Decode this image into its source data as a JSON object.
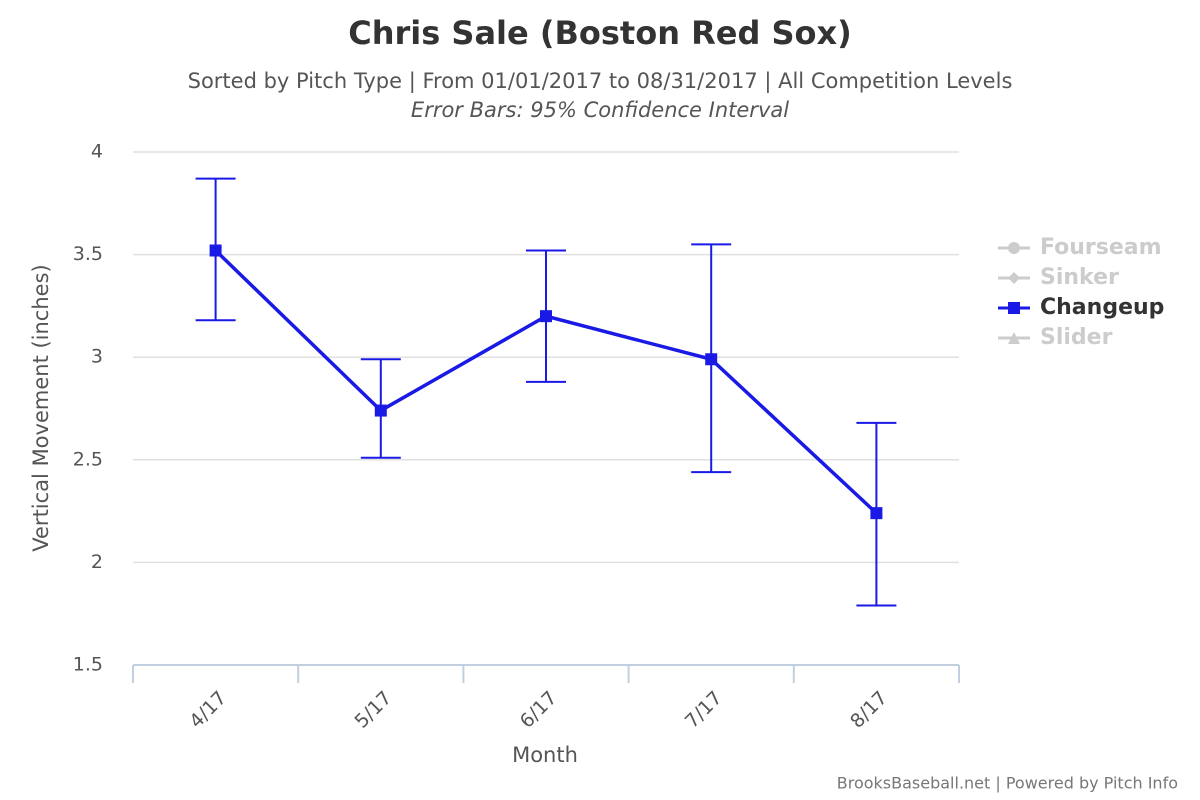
{
  "chart_data": {
    "type": "line",
    "title": "Chris Sale (Boston Red Sox)",
    "subtitle": "Sorted by Pitch Type | From 01/01/2017 to 08/31/2017 | All Competition Levels",
    "subtitle2": "Error Bars: 95% Confidence Interval",
    "x_label": "Month",
    "y_label": "Vertical Movement (inches)",
    "credits": "BrooksBaseball.net | Powered by Pitch Info",
    "categories": [
      "4/17",
      "5/17",
      "6/17",
      "7/17",
      "8/17"
    ],
    "ylim": [
      1.5,
      4
    ],
    "yticks": [
      1.5,
      2,
      2.5,
      3,
      3.5,
      4
    ],
    "grid": true,
    "legend": "right",
    "series": [
      {
        "name": "Fourseam",
        "color": "#cccccc",
        "visible": false,
        "marker": "circle",
        "values": [
          null,
          null,
          null,
          null,
          null
        ]
      },
      {
        "name": "Sinker",
        "color": "#cccccc",
        "visible": false,
        "marker": "diamond",
        "values": [
          null,
          null,
          null,
          null,
          null
        ]
      },
      {
        "name": "Changeup",
        "color": "#1a1ae6",
        "visible": true,
        "marker": "square",
        "values": [
          3.52,
          2.74,
          3.2,
          2.99,
          2.24
        ],
        "error_low": [
          3.18,
          2.51,
          2.88,
          2.44,
          1.79
        ],
        "error_high": [
          3.87,
          2.99,
          3.52,
          3.55,
          2.68
        ]
      },
      {
        "name": "Slider",
        "color": "#cccccc",
        "visible": false,
        "marker": "triangle",
        "values": [
          null,
          null,
          null,
          null,
          null
        ]
      }
    ]
  }
}
